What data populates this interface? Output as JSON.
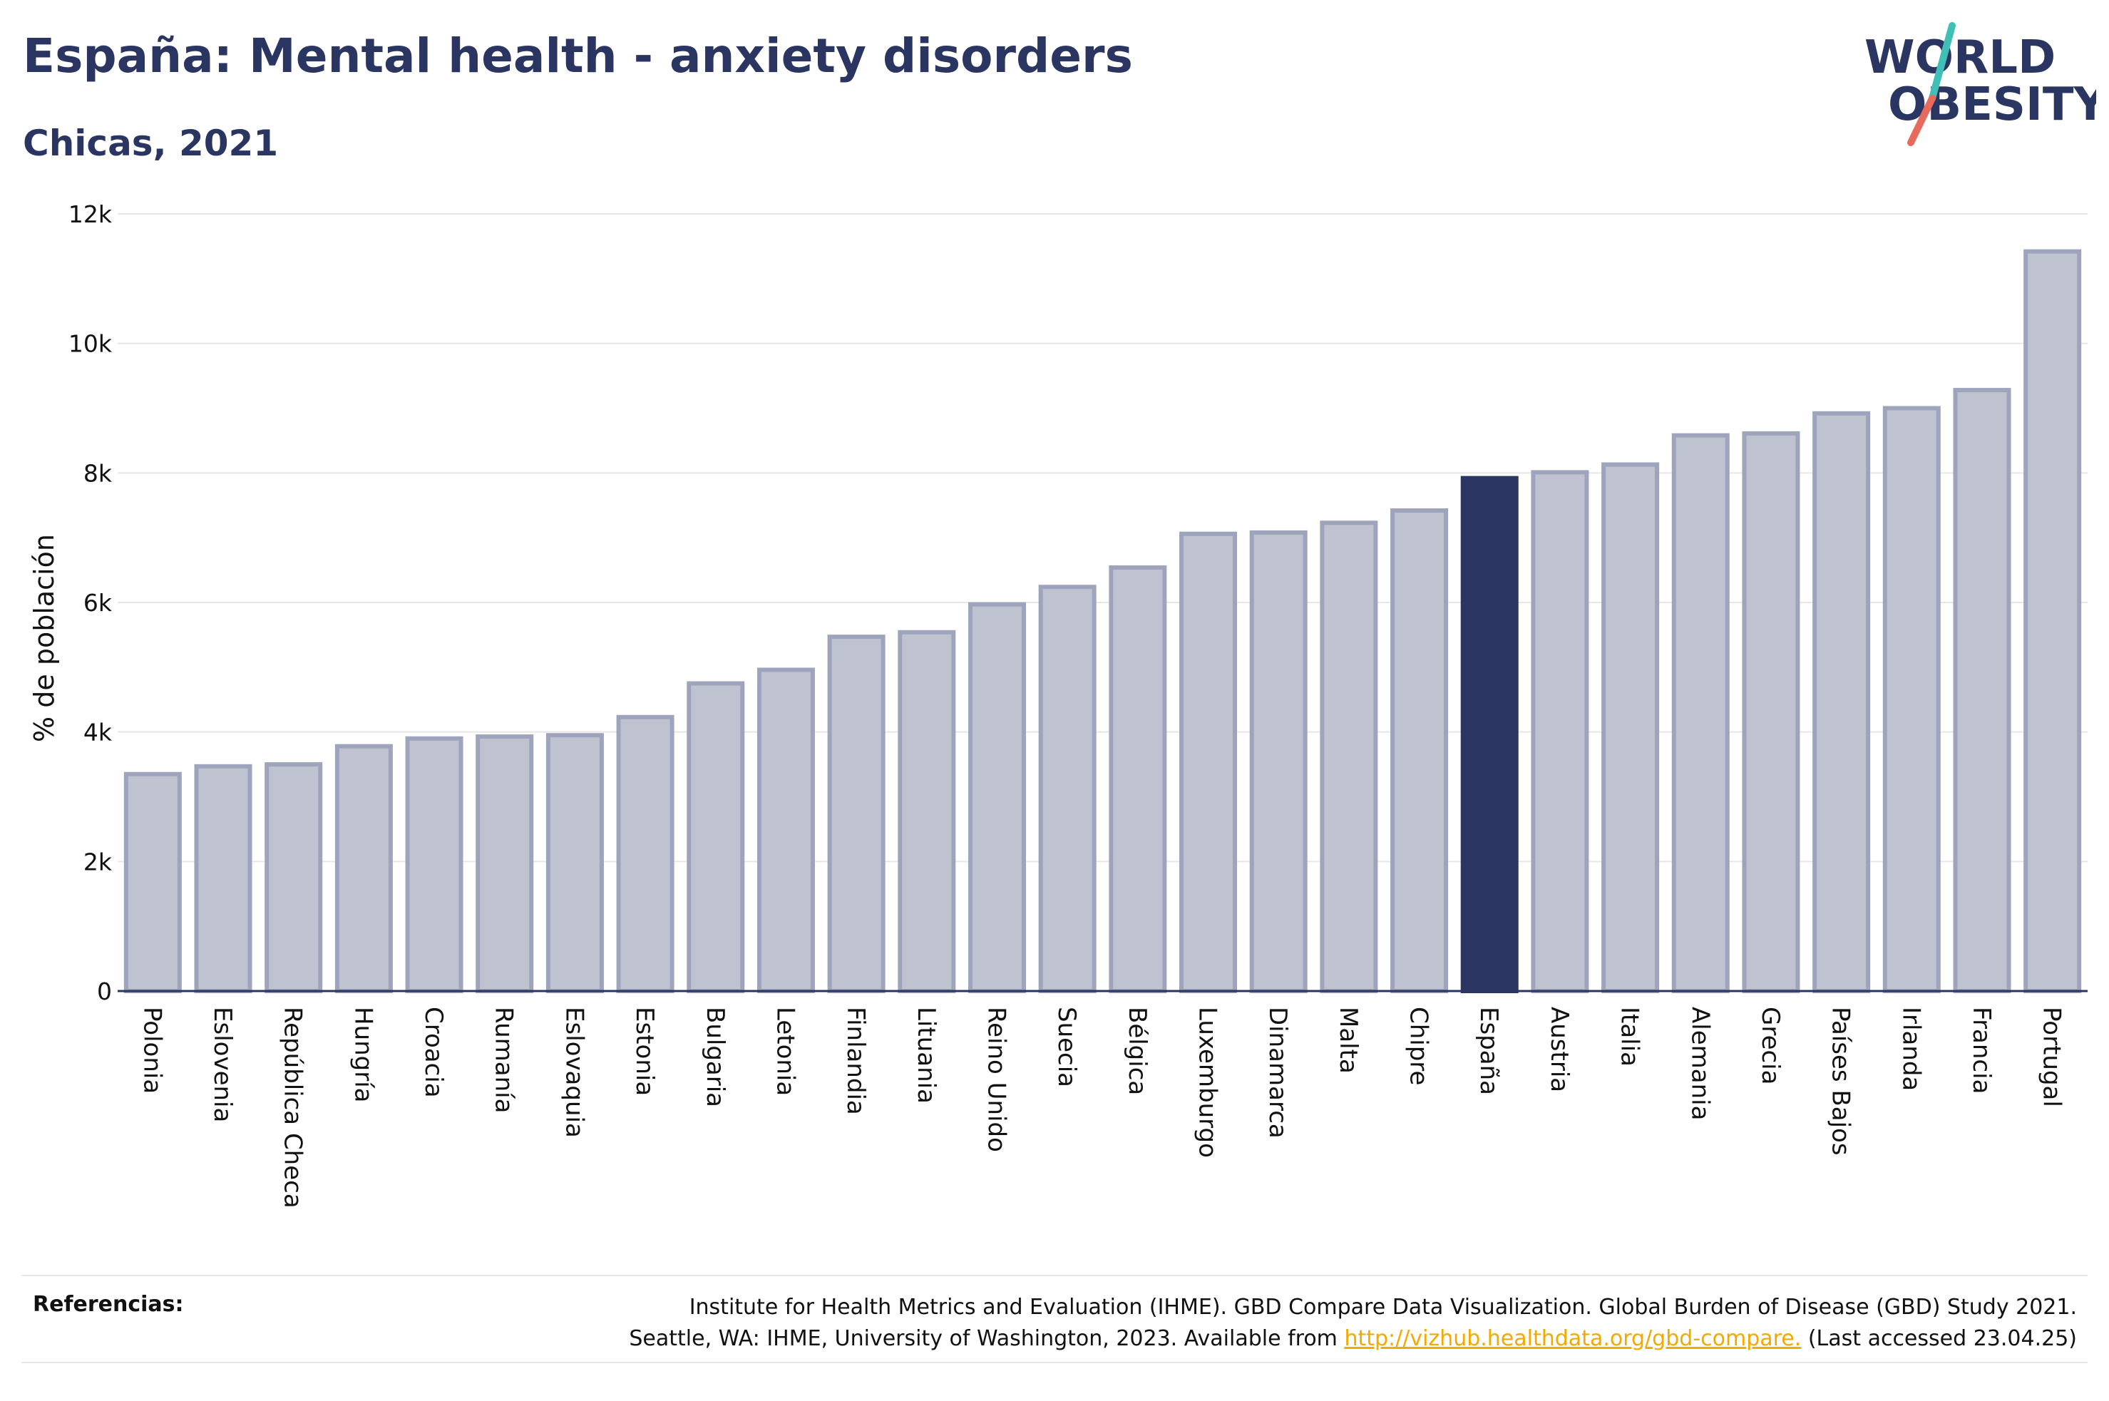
{
  "title": "España: Mental health - anxiety disorders",
  "subtitle": "Chicas, 2021",
  "logo": {
    "line1": "WORLD",
    "line2": "OBESITY"
  },
  "colors": {
    "highlight": "#2a3561",
    "bar_fill": "#bfc3d0",
    "bar_stroke": "#9ea4bb",
    "grid": "#e6e6e6",
    "logo_slash_teal": "#3fbfb5",
    "logo_slash_coral": "#e86a5c"
  },
  "chart_data": {
    "type": "bar",
    "ylabel": "% de población",
    "ylim": [
      0,
      12000
    ],
    "yticks": [
      0,
      2000,
      4000,
      6000,
      8000,
      10000,
      12000
    ],
    "ytick_labels": [
      "0",
      "2k",
      "4k",
      "6k",
      "8k",
      "10k",
      "12k"
    ],
    "highlight": "España",
    "categories": [
      "Polonia",
      "Eslovenia",
      "República Checa",
      "Hungría",
      "Croacia",
      "Rumanía",
      "Eslovaquia",
      "Estonia",
      "Bulgaria",
      "Letonia",
      "Finlandia",
      "Lituania",
      "Reino Unido",
      "Suecia",
      "Bélgica",
      "Luxemburgo",
      "Dinamarca",
      "Malta",
      "Chipre",
      "España",
      "Austria",
      "Italia",
      "Alemania",
      "Grecia",
      "Países Bajos",
      "Irlanda",
      "Francia",
      "Portugal"
    ],
    "values": [
      3350,
      3470,
      3500,
      3780,
      3900,
      3930,
      3950,
      4230,
      4750,
      4960,
      5470,
      5540,
      5970,
      6240,
      6540,
      7060,
      7080,
      7230,
      7420,
      7920,
      8010,
      8130,
      8580,
      8610,
      8920,
      9000,
      9280,
      11420
    ]
  },
  "references": {
    "label": "Referencias:",
    "line1": "Institute for Health Metrics and Evaluation (IHME). GBD Compare Data Visualization. Global Burden of Disease (GBD) Study 2021.",
    "line2_prefix": "Seattle, WA: IHME, University of Washington, 2023. Available from ",
    "link": "http://vizhub.healthdata.org/gbd-compare.",
    "line2_suffix": " (Last accessed 23.04.25)"
  }
}
